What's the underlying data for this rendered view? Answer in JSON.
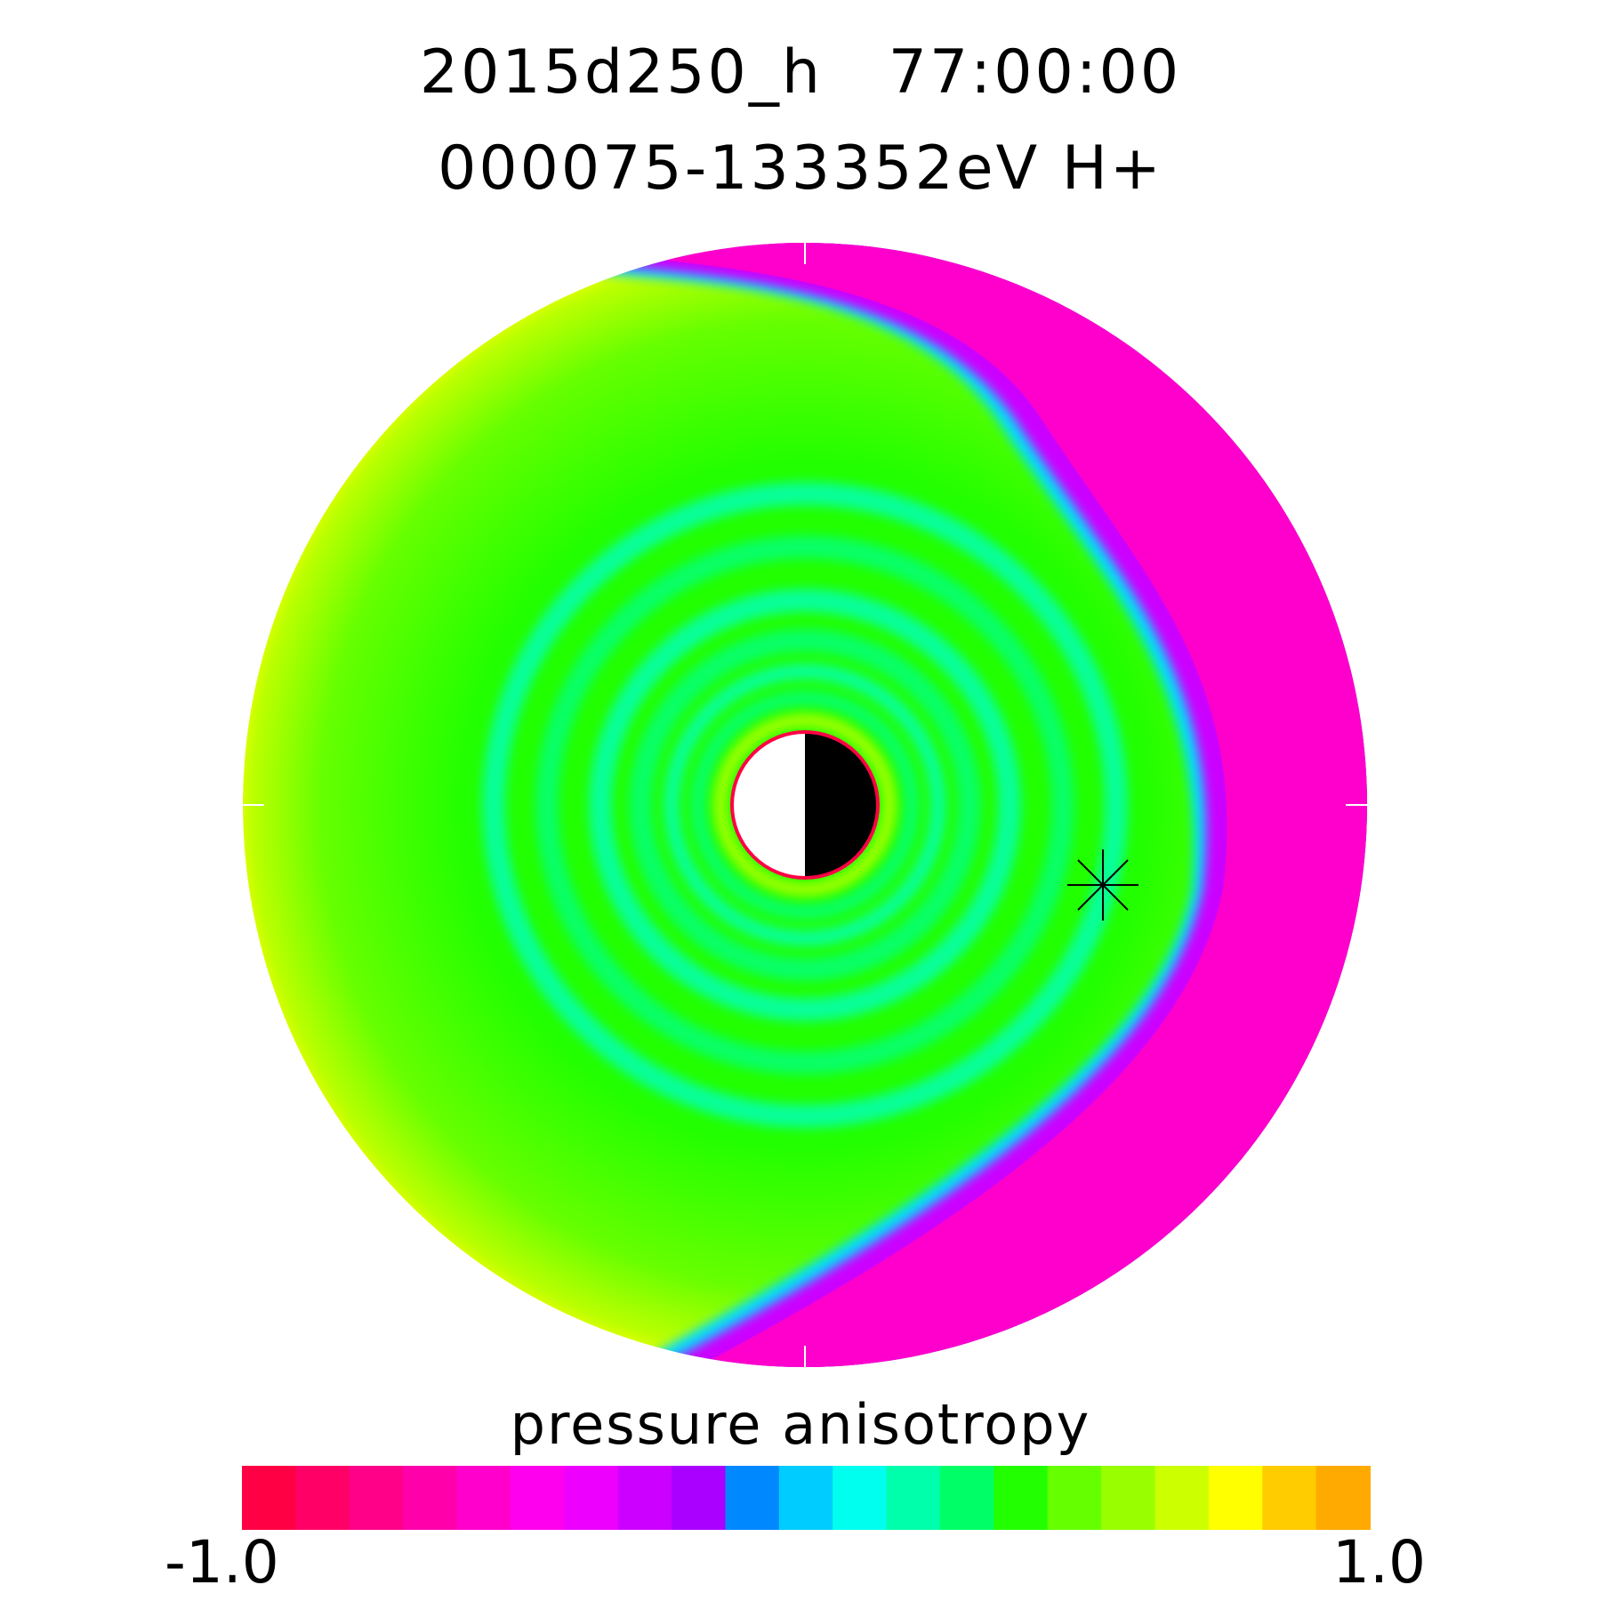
{
  "title_line1": "2015d250_h   77:00:00",
  "title_line2": "000075-133352eV H+",
  "chart_data": {
    "type": "heatmap",
    "projection": "polar",
    "colorbar": {
      "label": "pressure anisotropy",
      "min": -1.0,
      "max": 1.0,
      "min_label": "-1.0",
      "max_label": "1.0",
      "colors": [
        "#ff0044",
        "#ff0066",
        "#ff0088",
        "#ff00aa",
        "#ff00cc",
        "#ff00ee",
        "#ee00ff",
        "#cc00ff",
        "#aa00ff",
        "#0088ff",
        "#00ccff",
        "#00ffee",
        "#00ffaa",
        "#00ff66",
        "#22ff00",
        "#66ff00",
        "#99ff00",
        "#ccff00",
        "#ffff00",
        "#ffcc00",
        "#ffaa00"
      ]
    },
    "field_colors": {
      "negative": "#ff00cc",
      "boundary_negative": "#cc00ff",
      "boundary_positive": "#00ddff",
      "inner": "#00ff88",
      "main": "#22ff00",
      "outer_positive": "#ddff00"
    },
    "earth": {
      "day": "#ffffff",
      "night": "#000000",
      "outline": "#ff0044"
    },
    "satellite_marker": "asterisk"
  }
}
